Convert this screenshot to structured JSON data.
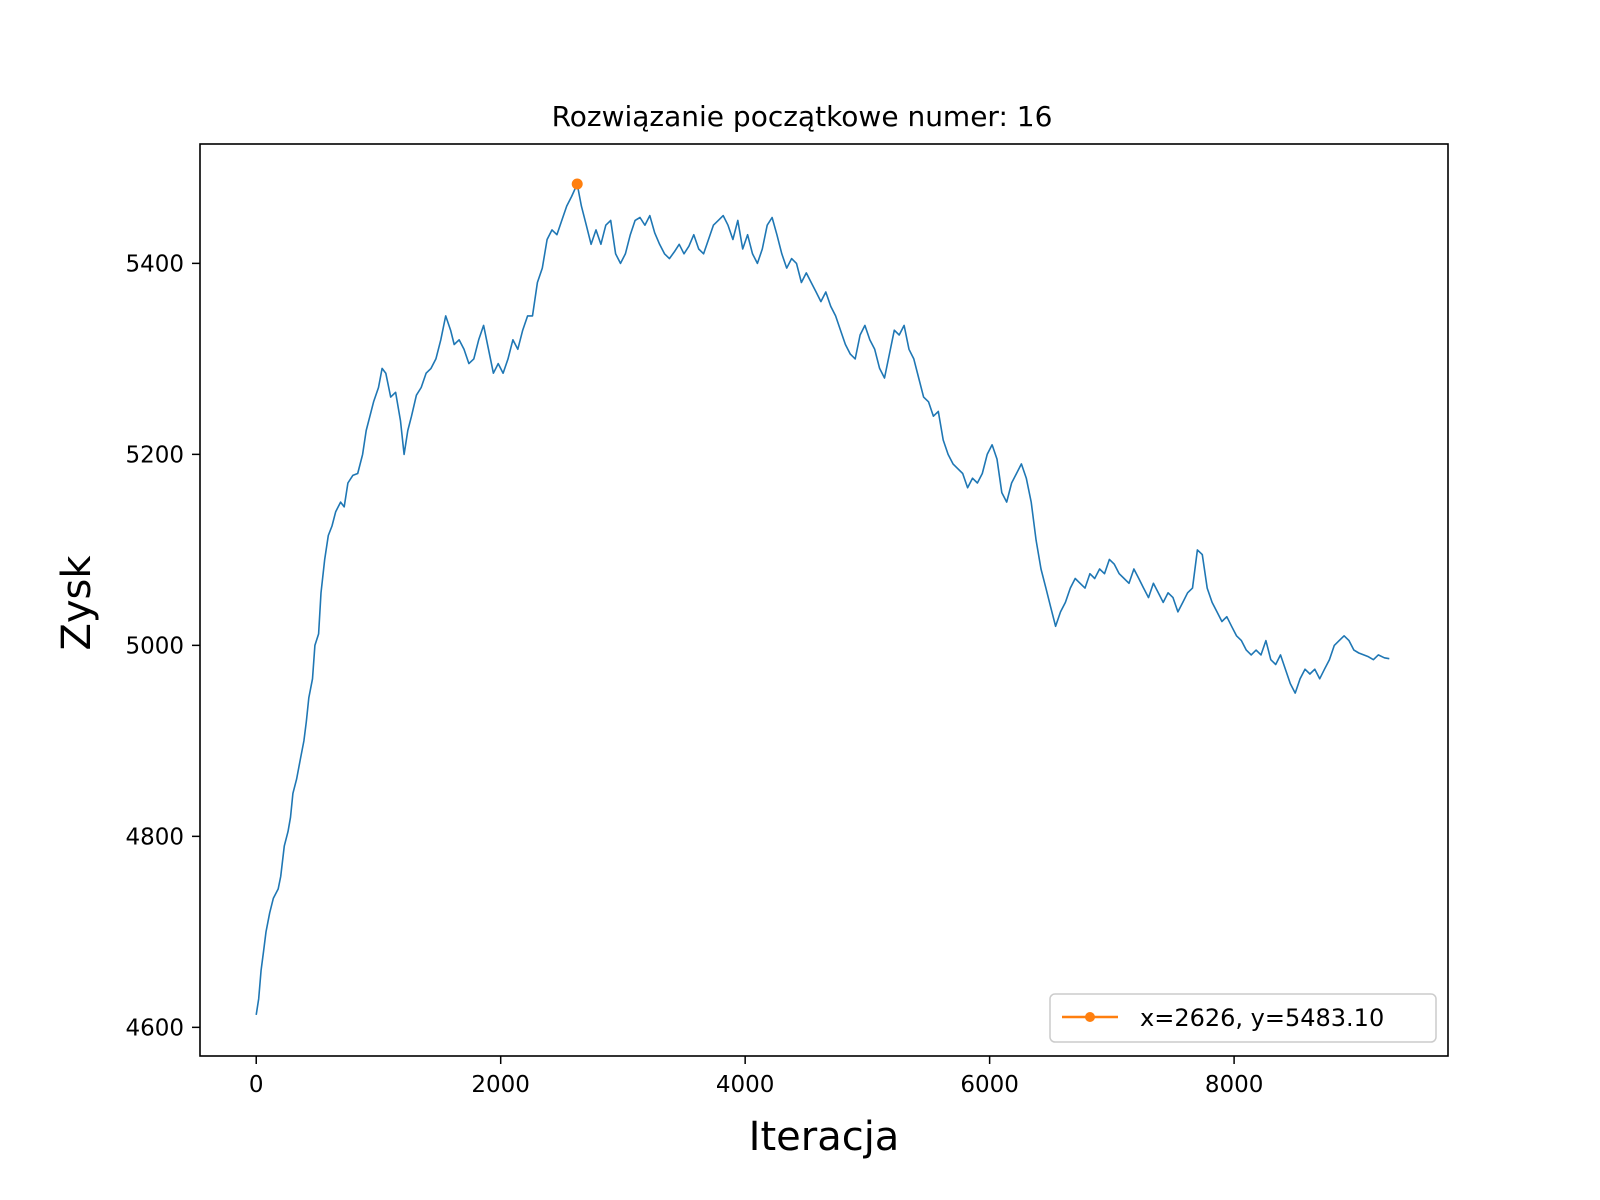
{
  "chart_data": {
    "type": "line",
    "title": "Rozwiązanie początkowe numer: 16",
    "xlabel": "Iteracja",
    "ylabel": "Zysk",
    "xlim": [
      -460,
      9750
    ],
    "ylim": [
      4570,
      5525
    ],
    "x_ticks": [
      0,
      2000,
      4000,
      6000,
      8000
    ],
    "y_ticks": [
      4600,
      4800,
      5000,
      5200,
      5400
    ],
    "grid": false,
    "legend_position": "lower-right",
    "series": [
      {
        "name": "",
        "color": "#1f77b4",
        "points": [
          [
            0,
            4613
          ],
          [
            20,
            4630
          ],
          [
            40,
            4660
          ],
          [
            60,
            4680
          ],
          [
            80,
            4700
          ],
          [
            110,
            4720
          ],
          [
            140,
            4735
          ],
          [
            180,
            4745
          ],
          [
            200,
            4758
          ],
          [
            230,
            4790
          ],
          [
            260,
            4805
          ],
          [
            280,
            4820
          ],
          [
            300,
            4845
          ],
          [
            330,
            4860
          ],
          [
            360,
            4880
          ],
          [
            390,
            4900
          ],
          [
            410,
            4920
          ],
          [
            430,
            4945
          ],
          [
            460,
            4965
          ],
          [
            480,
            5000
          ],
          [
            510,
            5012
          ],
          [
            530,
            5055
          ],
          [
            560,
            5090
          ],
          [
            590,
            5115
          ],
          [
            620,
            5125
          ],
          [
            650,
            5140
          ],
          [
            690,
            5150
          ],
          [
            720,
            5145
          ],
          [
            750,
            5170
          ],
          [
            790,
            5178
          ],
          [
            830,
            5180
          ],
          [
            870,
            5200
          ],
          [
            900,
            5225
          ],
          [
            930,
            5240
          ],
          [
            960,
            5255
          ],
          [
            1000,
            5270
          ],
          [
            1030,
            5290
          ],
          [
            1060,
            5285
          ],
          [
            1100,
            5260
          ],
          [
            1140,
            5265
          ],
          [
            1180,
            5235
          ],
          [
            1210,
            5200
          ],
          [
            1240,
            5225
          ],
          [
            1270,
            5240
          ],
          [
            1310,
            5262
          ],
          [
            1350,
            5270
          ],
          [
            1390,
            5285
          ],
          [
            1430,
            5290
          ],
          [
            1470,
            5300
          ],
          [
            1510,
            5320
          ],
          [
            1550,
            5345
          ],
          [
            1590,
            5330
          ],
          [
            1620,
            5315
          ],
          [
            1660,
            5320
          ],
          [
            1700,
            5310
          ],
          [
            1740,
            5295
          ],
          [
            1780,
            5300
          ],
          [
            1820,
            5320
          ],
          [
            1860,
            5335
          ],
          [
            1900,
            5310
          ],
          [
            1940,
            5285
          ],
          [
            1980,
            5295
          ],
          [
            2020,
            5285
          ],
          [
            2060,
            5300
          ],
          [
            2100,
            5320
          ],
          [
            2140,
            5310
          ],
          [
            2180,
            5330
          ],
          [
            2220,
            5345
          ],
          [
            2260,
            5345
          ],
          [
            2300,
            5380
          ],
          [
            2340,
            5395
          ],
          [
            2380,
            5425
          ],
          [
            2420,
            5435
          ],
          [
            2460,
            5430
          ],
          [
            2500,
            5445
          ],
          [
            2540,
            5460
          ],
          [
            2580,
            5470
          ],
          [
            2626,
            5483
          ],
          [
            2660,
            5460
          ],
          [
            2700,
            5440
          ],
          [
            2740,
            5420
          ],
          [
            2780,
            5435
          ],
          [
            2820,
            5420
          ],
          [
            2860,
            5440
          ],
          [
            2900,
            5445
          ],
          [
            2940,
            5410
          ],
          [
            2980,
            5400
          ],
          [
            3020,
            5410
          ],
          [
            3060,
            5430
          ],
          [
            3100,
            5445
          ],
          [
            3140,
            5448
          ],
          [
            3180,
            5440
          ],
          [
            3220,
            5450
          ],
          [
            3260,
            5432
          ],
          [
            3300,
            5420
          ],
          [
            3340,
            5410
          ],
          [
            3380,
            5405
          ],
          [
            3420,
            5412
          ],
          [
            3460,
            5420
          ],
          [
            3500,
            5410
          ],
          [
            3540,
            5418
          ],
          [
            3580,
            5430
          ],
          [
            3620,
            5415
          ],
          [
            3660,
            5410
          ],
          [
            3700,
            5425
          ],
          [
            3740,
            5440
          ],
          [
            3780,
            5445
          ],
          [
            3820,
            5450
          ],
          [
            3860,
            5440
          ],
          [
            3900,
            5425
          ],
          [
            3940,
            5445
          ],
          [
            3980,
            5415
          ],
          [
            4020,
            5430
          ],
          [
            4060,
            5410
          ],
          [
            4100,
            5400
          ],
          [
            4140,
            5415
          ],
          [
            4180,
            5440
          ],
          [
            4220,
            5448
          ],
          [
            4260,
            5430
          ],
          [
            4300,
            5410
          ],
          [
            4340,
            5395
          ],
          [
            4380,
            5405
          ],
          [
            4420,
            5400
          ],
          [
            4460,
            5380
          ],
          [
            4500,
            5390
          ],
          [
            4540,
            5380
          ],
          [
            4580,
            5370
          ],
          [
            4620,
            5360
          ],
          [
            4660,
            5370
          ],
          [
            4700,
            5355
          ],
          [
            4740,
            5345
          ],
          [
            4780,
            5330
          ],
          [
            4820,
            5315
          ],
          [
            4860,
            5305
          ],
          [
            4900,
            5300
          ],
          [
            4940,
            5325
          ],
          [
            4980,
            5335
          ],
          [
            5020,
            5320
          ],
          [
            5060,
            5310
          ],
          [
            5100,
            5290
          ],
          [
            5140,
            5280
          ],
          [
            5180,
            5305
          ],
          [
            5220,
            5330
          ],
          [
            5260,
            5325
          ],
          [
            5300,
            5335
          ],
          [
            5340,
            5310
          ],
          [
            5380,
            5300
          ],
          [
            5420,
            5280
          ],
          [
            5460,
            5260
          ],
          [
            5500,
            5255
          ],
          [
            5540,
            5240
          ],
          [
            5580,
            5245
          ],
          [
            5620,
            5215
          ],
          [
            5660,
            5200
          ],
          [
            5700,
            5190
          ],
          [
            5740,
            5185
          ],
          [
            5780,
            5180
          ],
          [
            5820,
            5165
          ],
          [
            5860,
            5175
          ],
          [
            5900,
            5170
          ],
          [
            5940,
            5180
          ],
          [
            5980,
            5200
          ],
          [
            6020,
            5210
          ],
          [
            6060,
            5195
          ],
          [
            6100,
            5160
          ],
          [
            6140,
            5150
          ],
          [
            6180,
            5170
          ],
          [
            6220,
            5180
          ],
          [
            6260,
            5190
          ],
          [
            6300,
            5175
          ],
          [
            6340,
            5150
          ],
          [
            6380,
            5110
          ],
          [
            6420,
            5080
          ],
          [
            6460,
            5060
          ],
          [
            6500,
            5040
          ],
          [
            6540,
            5020
          ],
          [
            6580,
            5035
          ],
          [
            6620,
            5045
          ],
          [
            6660,
            5060
          ],
          [
            6700,
            5070
          ],
          [
            6740,
            5065
          ],
          [
            6780,
            5060
          ],
          [
            6820,
            5075
          ],
          [
            6860,
            5070
          ],
          [
            6900,
            5080
          ],
          [
            6940,
            5075
          ],
          [
            6980,
            5090
          ],
          [
            7020,
            5085
          ],
          [
            7060,
            5075
          ],
          [
            7100,
            5070
          ],
          [
            7140,
            5065
          ],
          [
            7180,
            5080
          ],
          [
            7220,
            5070
          ],
          [
            7260,
            5060
          ],
          [
            7300,
            5050
          ],
          [
            7340,
            5065
          ],
          [
            7380,
            5055
          ],
          [
            7420,
            5045
          ],
          [
            7460,
            5055
          ],
          [
            7500,
            5050
          ],
          [
            7540,
            5035
          ],
          [
            7580,
            5045
          ],
          [
            7620,
            5055
          ],
          [
            7660,
            5060
          ],
          [
            7700,
            5100
          ],
          [
            7740,
            5095
          ],
          [
            7780,
            5060
          ],
          [
            7820,
            5045
          ],
          [
            7860,
            5035
          ],
          [
            7900,
            5025
          ],
          [
            7940,
            5030
          ],
          [
            7980,
            5020
          ],
          [
            8020,
            5010
          ],
          [
            8060,
            5005
          ],
          [
            8100,
            4995
          ],
          [
            8140,
            4990
          ],
          [
            8180,
            4995
          ],
          [
            8220,
            4990
          ],
          [
            8260,
            5005
          ],
          [
            8300,
            4985
          ],
          [
            8340,
            4980
          ],
          [
            8380,
            4990
          ],
          [
            8420,
            4975
          ],
          [
            8460,
            4960
          ],
          [
            8500,
            4950
          ],
          [
            8540,
            4965
          ],
          [
            8580,
            4975
          ],
          [
            8620,
            4970
          ],
          [
            8660,
            4975
          ],
          [
            8700,
            4965
          ],
          [
            8740,
            4975
          ],
          [
            8780,
            4985
          ],
          [
            8820,
            5000
          ],
          [
            8860,
            5005
          ],
          [
            8900,
            5010
          ],
          [
            8940,
            5005
          ],
          [
            8980,
            4995
          ],
          [
            9020,
            4992
          ],
          [
            9060,
            4990
          ],
          [
            9100,
            4988
          ],
          [
            9140,
            4985
          ],
          [
            9180,
            4990
          ],
          [
            9230,
            4987
          ],
          [
            9270,
            4986
          ]
        ]
      },
      {
        "name": "x=2626, y=5483.10",
        "color": "#ff7f0e",
        "points": [
          [
            2626,
            5483.1
          ]
        ]
      }
    ]
  }
}
